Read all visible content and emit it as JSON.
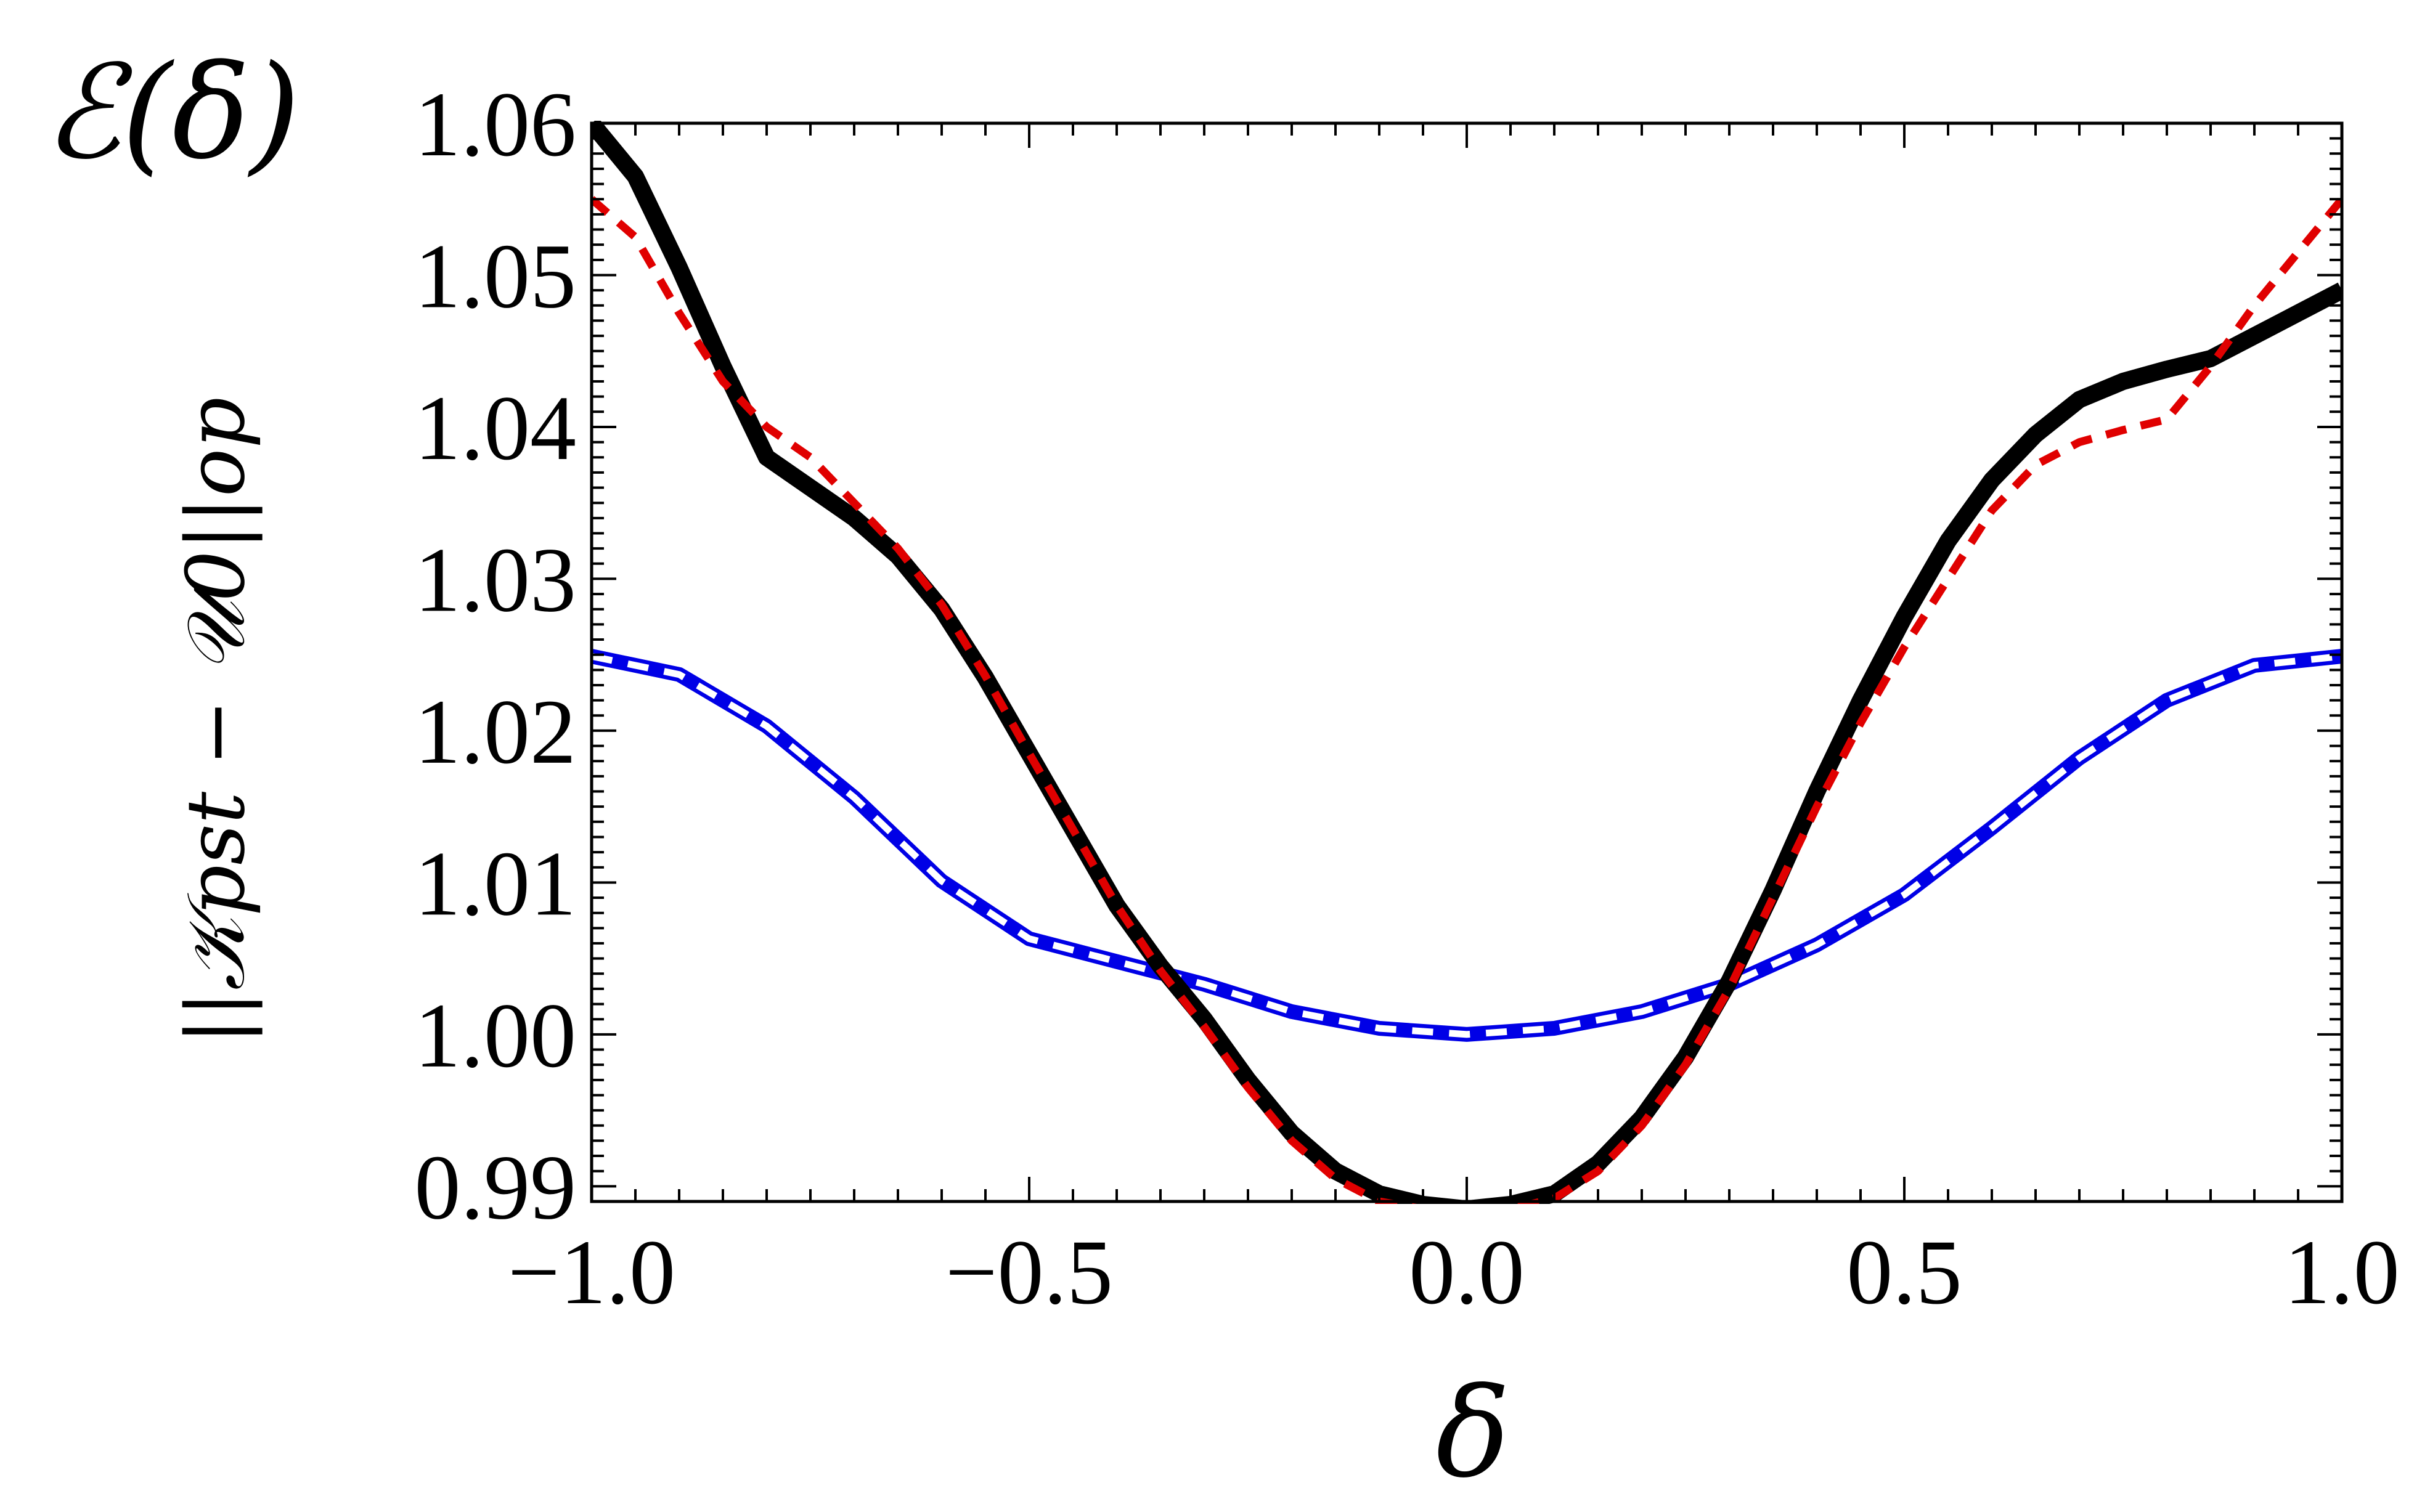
{
  "chart_data": {
    "type": "line",
    "title": "",
    "xlabel": "δ",
    "ylabel": "||𝒦pst − 𝒰0||op",
    "corner_label": "ℰ(δ)",
    "xlim": [
      -1.0,
      1.0
    ],
    "ylim": [
      0.989,
      1.06
    ],
    "x_ticks": [
      -1.0,
      -0.5,
      0.0,
      0.5,
      1.0
    ],
    "x_tick_labels": [
      "−1.0",
      "−0.5",
      "0.0",
      "0.5",
      "1.0"
    ],
    "y_ticks": [
      0.99,
      1.0,
      1.01,
      1.02,
      1.03,
      1.04,
      1.05,
      1.06
    ],
    "y_tick_labels": [
      "0.99",
      "1.00",
      "1.01",
      "1.02",
      "1.03",
      "1.04",
      "1.05",
      "1.06"
    ],
    "grid": false,
    "series": [
      {
        "color": "#0000e6",
        "style": "solid-thick",
        "x": [
          -1.0,
          -0.9,
          -0.8,
          -0.7,
          -0.6,
          -0.5,
          -0.4,
          -0.3,
          -0.2,
          -0.1,
          0.0,
          0.1,
          0.2,
          0.3,
          0.4,
          0.5,
          0.6,
          0.7,
          0.8,
          0.9,
          1.0
        ],
        "y": [
          1.0249,
          1.0237,
          1.0203,
          1.0156,
          1.0101,
          1.0063,
          1.0048,
          1.0033,
          1.0015,
          1.0004,
          1.0,
          1.0004,
          1.0015,
          1.0033,
          1.0059,
          1.0092,
          1.0136,
          1.0182,
          1.022,
          1.0243,
          1.0249
        ]
      },
      {
        "color": "#ffffff",
        "style": "dashed-overlay",
        "x": [
          -1.0,
          -0.9,
          -0.8,
          -0.7,
          -0.6,
          -0.5,
          -0.4,
          -0.3,
          -0.2,
          -0.1,
          0.0,
          0.1,
          0.2,
          0.3,
          0.4,
          0.5,
          0.6,
          0.7,
          0.8,
          0.9,
          1.0
        ],
        "y": [
          1.0249,
          1.0237,
          1.0203,
          1.0156,
          1.0101,
          1.0063,
          1.0048,
          1.0033,
          1.0015,
          1.0004,
          1.0,
          1.0004,
          1.0015,
          1.0033,
          1.0059,
          1.0092,
          1.0136,
          1.0182,
          1.022,
          1.0243,
          1.0249
        ]
      },
      {
        "color": "#000000",
        "style": "solid-thick",
        "x": [
          -1.0,
          -0.95,
          -0.9,
          -0.85,
          -0.8,
          -0.75,
          -0.7,
          -0.65,
          -0.6,
          -0.55,
          -0.5,
          -0.45,
          -0.4,
          -0.35,
          -0.3,
          -0.25,
          -0.2,
          -0.15,
          -0.1,
          -0.05,
          0.0,
          0.05,
          0.1,
          0.15,
          0.2,
          0.25,
          0.3,
          0.35,
          0.4,
          0.45,
          0.5,
          0.55,
          0.6,
          0.65,
          0.7,
          0.75,
          0.8,
          0.85,
          0.9,
          0.95,
          1.0
        ],
        "y": [
          1.06,
          1.0565,
          1.0505,
          1.044,
          1.038,
          1.036,
          1.034,
          1.0315,
          1.028,
          1.0235,
          1.0185,
          1.0135,
          1.0085,
          1.0045,
          1.001,
          0.997,
          0.9935,
          0.991,
          0.9895,
          0.9888,
          0.9885,
          0.9888,
          0.9895,
          0.9915,
          0.9945,
          0.9985,
          1.0035,
          1.0095,
          1.016,
          1.022,
          1.0275,
          1.0325,
          1.0365,
          1.0395,
          1.0418,
          1.043,
          1.0438,
          1.0445,
          1.046,
          1.0475,
          1.049
        ]
      },
      {
        "color": "#e00000",
        "style": "dashed",
        "x": [
          -1.0,
          -0.95,
          -0.9,
          -0.85,
          -0.8,
          -0.75,
          -0.7,
          -0.65,
          -0.6,
          -0.55,
          -0.5,
          -0.45,
          -0.4,
          -0.35,
          -0.3,
          -0.25,
          -0.2,
          -0.15,
          -0.1,
          -0.05,
          0.0,
          0.05,
          0.1,
          0.15,
          0.2,
          0.25,
          0.3,
          0.35,
          0.4,
          0.45,
          0.5,
          0.55,
          0.6,
          0.65,
          0.7,
          0.75,
          0.8,
          0.85,
          0.9,
          0.95,
          1.0
        ],
        "y": [
          1.055,
          1.0525,
          1.0475,
          1.043,
          1.04,
          1.038,
          1.035,
          1.032,
          1.0283,
          1.0236,
          1.0185,
          1.0135,
          1.0085,
          1.0042,
          1.0005,
          0.9965,
          0.993,
          0.9905,
          0.989,
          0.9885,
          0.9885,
          0.9885,
          0.9892,
          0.991,
          0.994,
          0.998,
          1.003,
          1.009,
          1.015,
          1.0205,
          1.0255,
          1.03,
          1.0345,
          1.0375,
          1.039,
          1.0398,
          1.0405,
          1.044,
          1.048,
          1.0515,
          1.055
        ]
      }
    ]
  }
}
